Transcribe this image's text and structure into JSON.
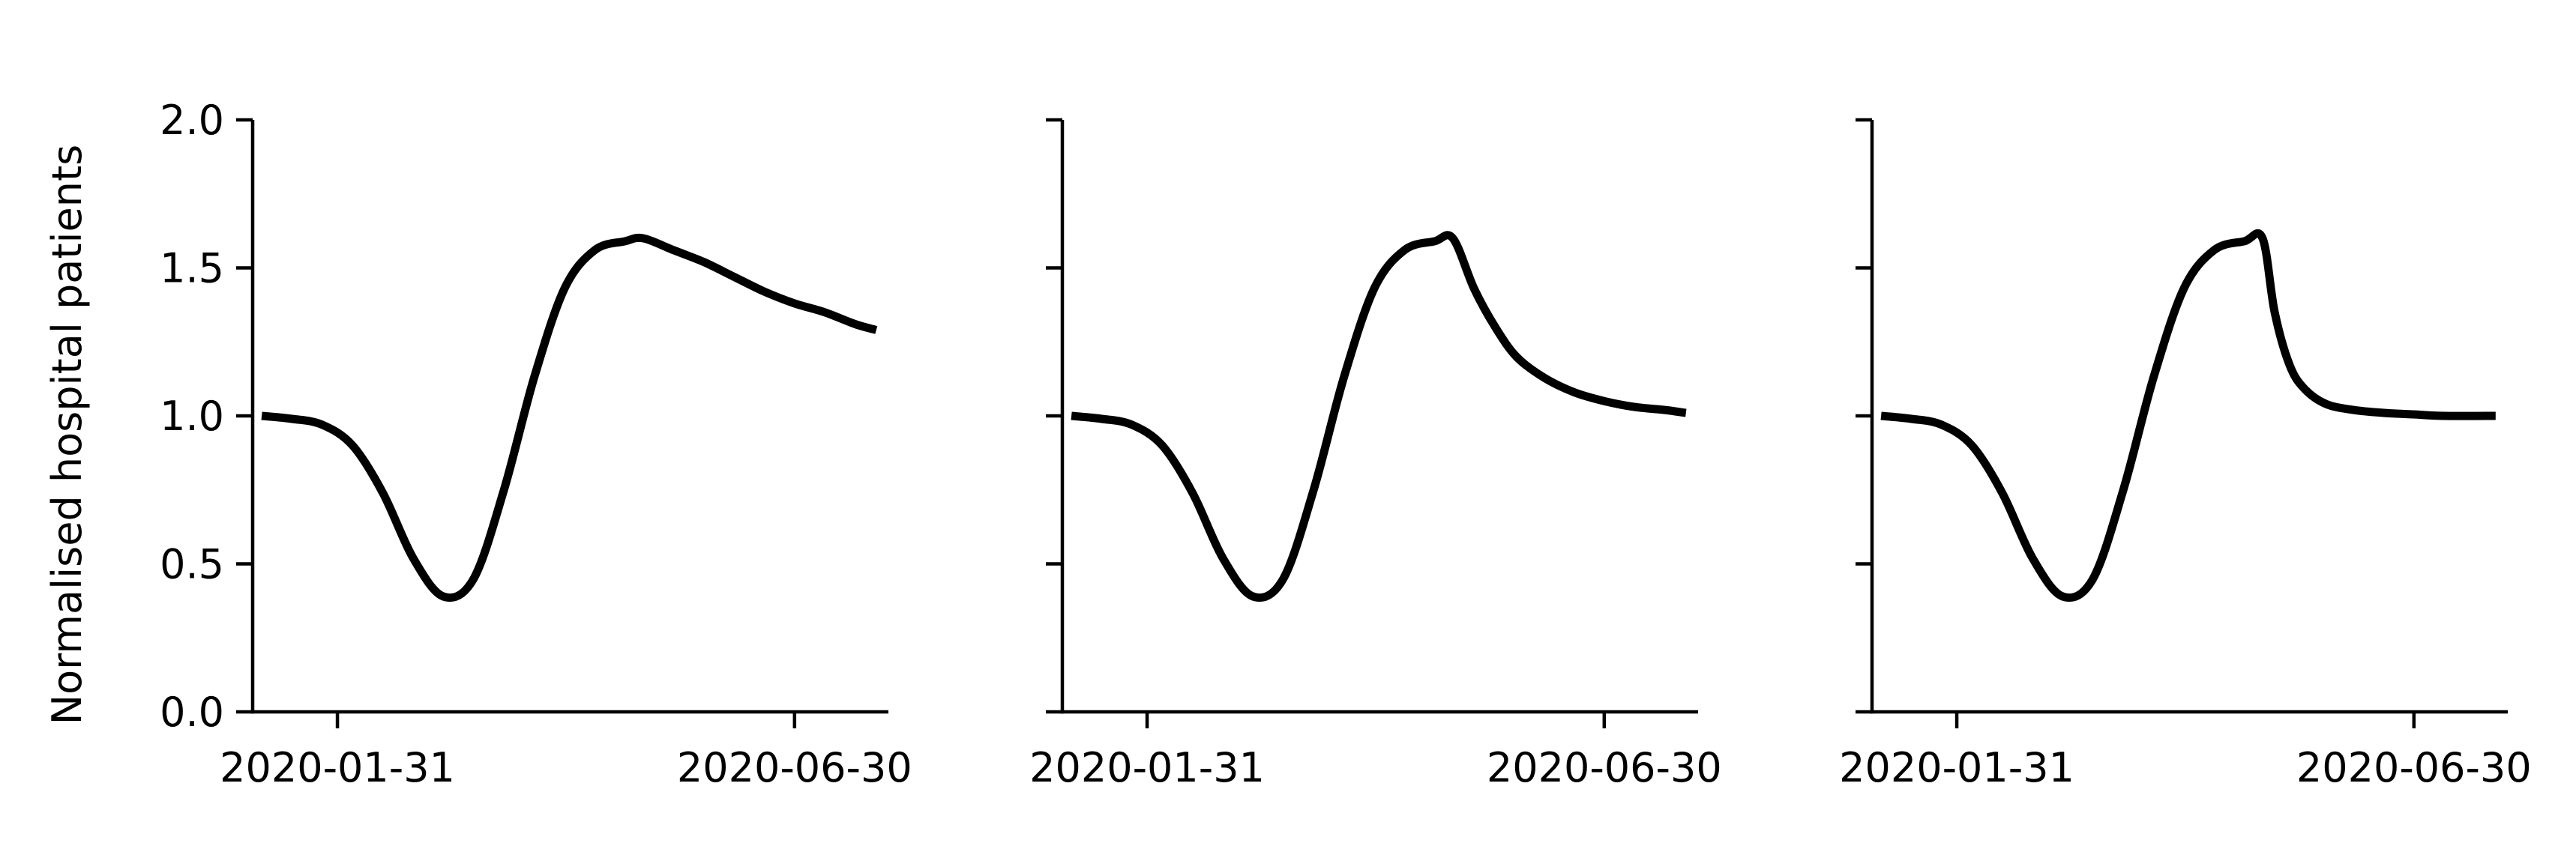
{
  "figure": {
    "ylabel": "Normalised hospital patients",
    "colors": {
      "line": "#000000",
      "axes": "#000000",
      "background": "#ffffff"
    }
  },
  "chart_data": [
    {
      "type": "line",
      "title": "",
      "xlabel": "",
      "ylabel": "Normalised hospital patients",
      "x_type": "date",
      "xlim": [
        "2020-01-03",
        "2020-07-31"
      ],
      "ylim": [
        0,
        2
      ],
      "xticks": [
        "2020-01-31",
        "2020-06-30"
      ],
      "yticks": [
        "0.0",
        "0.5",
        "1.0",
        "1.5",
        "2.0"
      ],
      "grid": false,
      "series": [
        {
          "x": [
            "2020-01-06",
            "2020-01-16",
            "2020-01-26",
            "2020-02-05",
            "2020-02-15",
            "2020-02-25",
            "2020-03-06",
            "2020-03-16",
            "2020-03-26",
            "2020-04-05",
            "2020-04-15",
            "2020-04-25",
            "2020-05-05",
            "2020-05-11",
            "2020-05-21",
            "2020-05-31",
            "2020-06-10",
            "2020-06-20",
            "2020-06-30",
            "2020-07-10",
            "2020-07-20",
            "2020-07-27"
          ],
          "y": [
            1.0,
            0.99,
            0.97,
            0.9,
            0.74,
            0.52,
            0.39,
            0.45,
            0.75,
            1.13,
            1.43,
            1.56,
            1.59,
            1.6,
            1.56,
            1.52,
            1.47,
            1.42,
            1.38,
            1.35,
            1.31,
            1.29
          ]
        }
      ]
    },
    {
      "type": "line",
      "title": "",
      "xlabel": "",
      "ylabel": "",
      "x_type": "date",
      "xlim": [
        "2020-01-03",
        "2020-07-31"
      ],
      "ylim": [
        0,
        2
      ],
      "xticks": [
        "2020-01-31",
        "2020-06-30"
      ],
      "yticks": [
        "0.0",
        "0.5",
        "1.0",
        "1.5",
        "2.0"
      ],
      "grid": false,
      "series": [
        {
          "x": [
            "2020-01-06",
            "2020-01-16",
            "2020-01-26",
            "2020-02-05",
            "2020-02-15",
            "2020-02-25",
            "2020-03-06",
            "2020-03-16",
            "2020-03-26",
            "2020-04-05",
            "2020-04-15",
            "2020-04-25",
            "2020-05-05",
            "2020-05-11",
            "2020-05-18",
            "2020-05-25",
            "2020-06-01",
            "2020-06-10",
            "2020-06-20",
            "2020-06-30",
            "2020-07-10",
            "2020-07-20",
            "2020-07-27"
          ],
          "y": [
            1.0,
            0.99,
            0.97,
            0.9,
            0.74,
            0.52,
            0.39,
            0.45,
            0.75,
            1.13,
            1.43,
            1.56,
            1.59,
            1.6,
            1.43,
            1.3,
            1.2,
            1.13,
            1.08,
            1.05,
            1.03,
            1.02,
            1.01
          ]
        }
      ]
    },
    {
      "type": "line",
      "title": "",
      "xlabel": "",
      "ylabel": "",
      "x_type": "date",
      "xlim": [
        "2020-01-03",
        "2020-07-31"
      ],
      "ylim": [
        0,
        2
      ],
      "xticks": [
        "2020-01-31",
        "2020-06-30"
      ],
      "yticks": [
        "0.0",
        "0.5",
        "1.0",
        "1.5",
        "2.0"
      ],
      "grid": false,
      "series": [
        {
          "x": [
            "2020-01-06",
            "2020-01-16",
            "2020-01-26",
            "2020-02-05",
            "2020-02-15",
            "2020-02-25",
            "2020-03-06",
            "2020-03-16",
            "2020-03-26",
            "2020-04-05",
            "2020-04-15",
            "2020-04-25",
            "2020-05-05",
            "2020-05-11",
            "2020-05-15",
            "2020-05-20",
            "2020-05-25",
            "2020-06-01",
            "2020-06-10",
            "2020-06-20",
            "2020-06-30",
            "2020-07-10",
            "2020-07-27"
          ],
          "y": [
            1.0,
            0.99,
            0.97,
            0.9,
            0.74,
            0.52,
            0.39,
            0.45,
            0.75,
            1.13,
            1.43,
            1.56,
            1.59,
            1.6,
            1.35,
            1.17,
            1.09,
            1.04,
            1.02,
            1.01,
            1.005,
            1.0,
            1.0
          ]
        }
      ]
    }
  ]
}
